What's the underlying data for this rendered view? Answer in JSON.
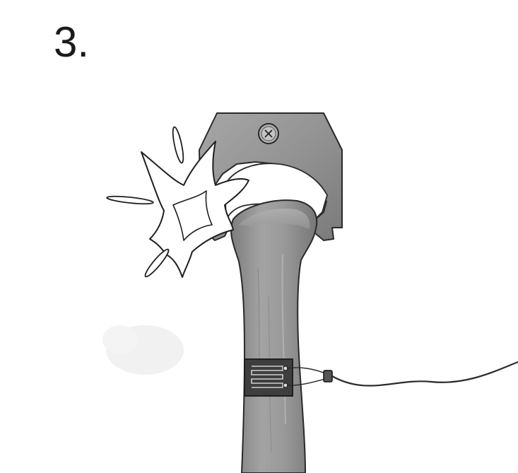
{
  "step": {
    "number": "3."
  },
  "illustration": {
    "icons": [
      "screw-icon",
      "impact-burst-icon",
      "strain-gauge-icon",
      "wire-cable-icon"
    ],
    "colors": {
      "bone_body": "#8f8f8f",
      "bone_light": "#b5b5b5",
      "clamp_body": "#9a9a9a",
      "clamp_dark": "#6e6e6e",
      "outline": "#2a2a2a",
      "gauge_dark": "#3e3e3e",
      "gauge_light": "#cfcfcf",
      "burst_fill": "#ffffff"
    }
  }
}
